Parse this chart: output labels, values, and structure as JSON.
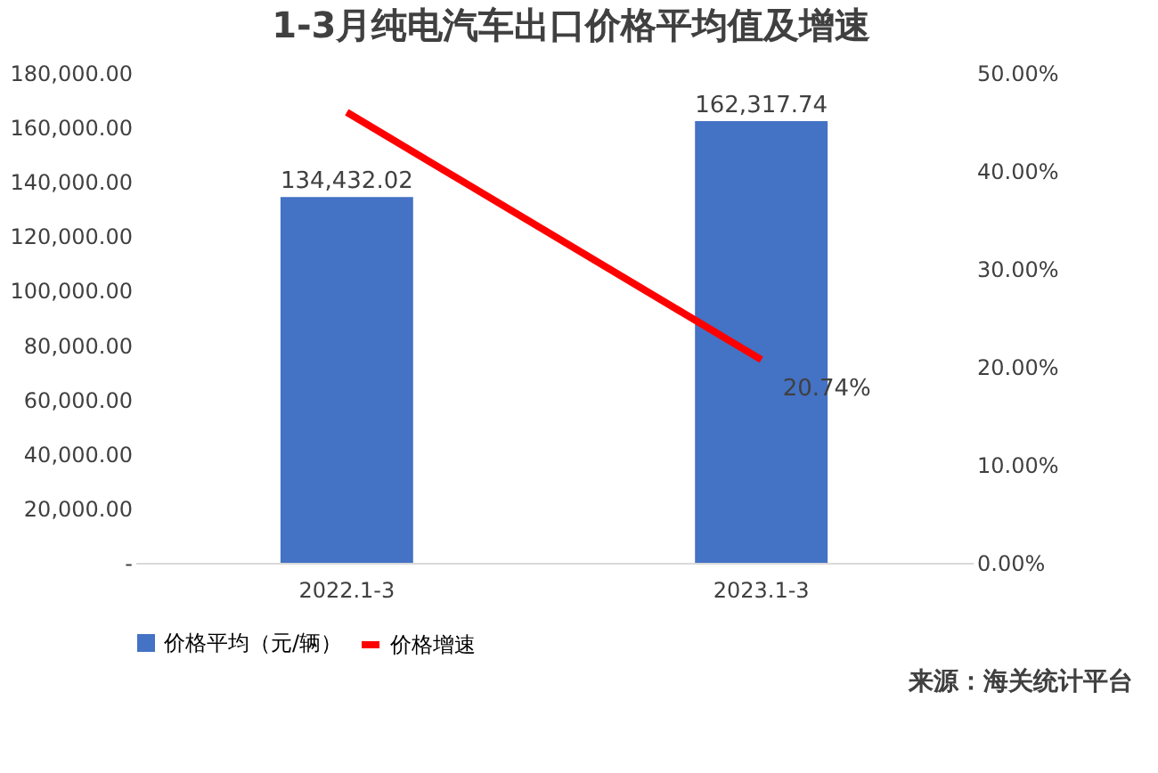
{
  "chart_data": {
    "type": "bar",
    "title": "1-3月纯电汽车出口价格平均值及增速",
    "categories": [
      "2022.1-3",
      "2023.1-3"
    ],
    "series": [
      {
        "name": "价格平均（元/辆）",
        "color": "#4472c4",
        "values": [
          134432.02,
          162317.74
        ],
        "value_labels": [
          "134,432.02",
          "162,317.74"
        ]
      },
      {
        "name": "价格增速",
        "type": "line",
        "axis": "y2",
        "color": "#ff0000",
        "values": [
          46,
          20.74
        ],
        "value_labels": [
          null,
          "20.74%"
        ]
      }
    ],
    "ylim": [
      0,
      180000
    ],
    "yticks": [
      {
        "value": 0,
        "label": "-"
      },
      {
        "value": 20000,
        "label": "20,000.00"
      },
      {
        "value": 40000,
        "label": "40,000.00"
      },
      {
        "value": 60000,
        "label": "60,000.00"
      },
      {
        "value": 80000,
        "label": "80,000.00"
      },
      {
        "value": 100000,
        "label": "100,000.00"
      },
      {
        "value": 120000,
        "label": "120,000.00"
      },
      {
        "value": 140000,
        "label": "140,000.00"
      },
      {
        "value": 160000,
        "label": "160,000.00"
      },
      {
        "value": 180000,
        "label": "180,000.00"
      }
    ],
    "y2lim": [
      0,
      50
    ],
    "y2ticks": [
      {
        "value": 0,
        "label": "0.00%"
      },
      {
        "value": 10,
        "label": "10.00%"
      },
      {
        "value": 20,
        "label": "20.00%"
      },
      {
        "value": 30,
        "label": "30.00%"
      },
      {
        "value": 40,
        "label": "40.00%"
      },
      {
        "value": 50,
        "label": "50.00%"
      }
    ],
    "grid": false,
    "legend": "bottom",
    "marker": "none",
    "annotations": [
      "来源：海关统计平台"
    ]
  }
}
